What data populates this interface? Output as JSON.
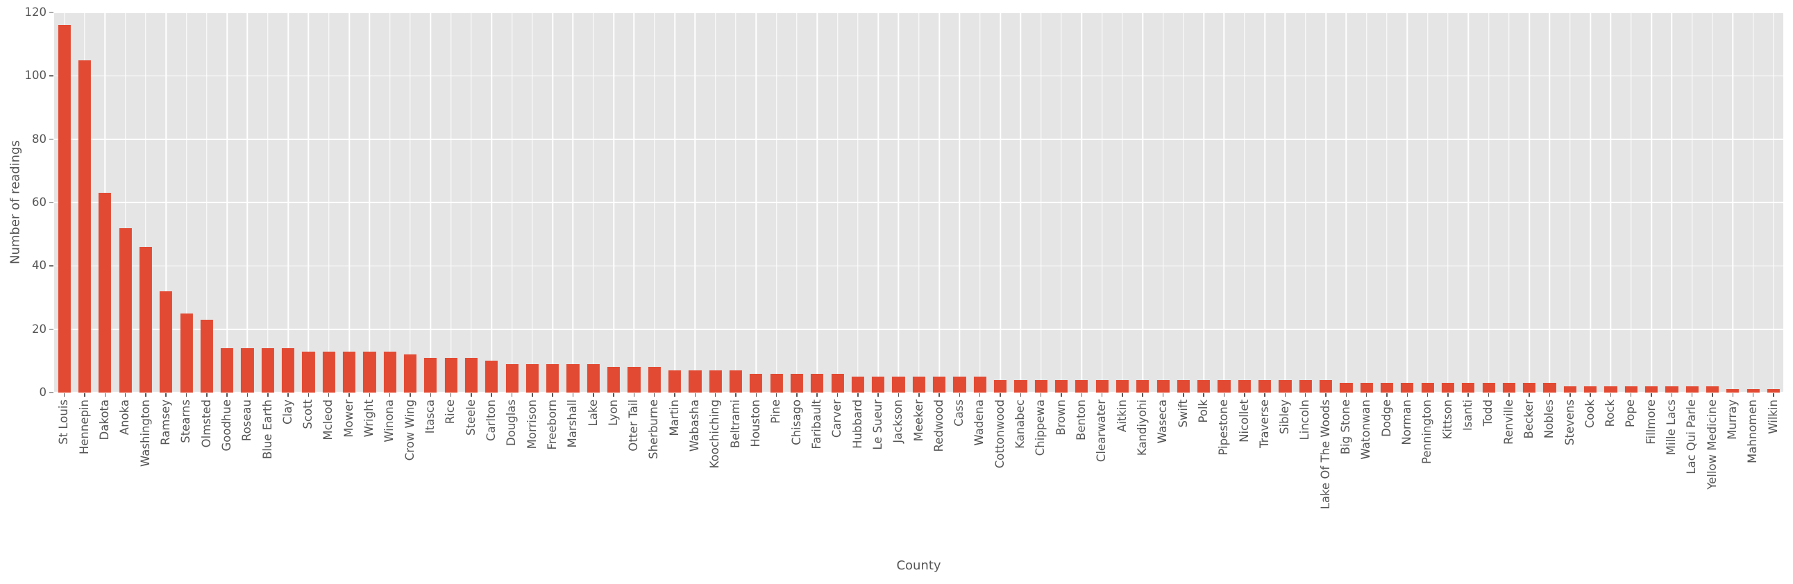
{
  "figure": {
    "background": "#ffffff",
    "plot_background": "#e5e5e5",
    "grid_color": "#ffffff",
    "bar_color": "#e24a33",
    "text_color": "#555555"
  },
  "chart_data": {
    "type": "bar",
    "title": "",
    "xlabel": "County",
    "ylabel": "Number of readings",
    "ylim": [
      0,
      120
    ],
    "yticks": [
      0,
      20,
      40,
      60,
      80,
      100,
      120
    ],
    "grid": true,
    "legend": false,
    "categories": [
      "St Louis",
      "Hennepin",
      "Dakota",
      "Anoka",
      "Washington",
      "Ramsey",
      "Stearns",
      "Olmsted",
      "Goodhue",
      "Roseau",
      "Blue Earth",
      "Clay",
      "Scott",
      "Mcleod",
      "Mower",
      "Wright",
      "Winona",
      "Crow Wing",
      "Itasca",
      "Rice",
      "Steele",
      "Carlton",
      "Douglas",
      "Morrison",
      "Freeborn",
      "Marshall",
      "Lake",
      "Lyon",
      "Otter Tail",
      "Sherburne",
      "Martin",
      "Wabasha",
      "Koochiching",
      "Beltrami",
      "Houston",
      "Pine",
      "Chisago",
      "Faribault",
      "Carver",
      "Hubbard",
      "Le Sueur",
      "Jackson",
      "Meeker",
      "Redwood",
      "Cass",
      "Wadena",
      "Cottonwood",
      "Kanabec",
      "Chippewa",
      "Brown",
      "Benton",
      "Clearwater",
      "Aitkin",
      "Kandiyohi",
      "Waseca",
      "Swift",
      "Polk",
      "Pipestone",
      "Nicollet",
      "Traverse",
      "Sibley",
      "Lincoln",
      "Lake Of The Woods",
      "Big Stone",
      "Watonwan",
      "Dodge",
      "Norman",
      "Pennington",
      "Kittson",
      "Isanti",
      "Todd",
      "Renville",
      "Becker",
      "Nobles",
      "Stevens",
      "Cook",
      "Rock",
      "Pope",
      "Fillmore",
      "Mille Lacs",
      "Lac Qui Parle",
      "Yellow Medicine",
      "Murray",
      "Mahnomen",
      "Wilkin"
    ],
    "values": [
      116,
      105,
      63,
      52,
      46,
      32,
      25,
      23,
      14,
      14,
      14,
      14,
      13,
      13,
      13,
      13,
      13,
      12,
      11,
      11,
      11,
      10,
      9,
      9,
      9,
      9,
      9,
      8,
      8,
      8,
      7,
      7,
      7,
      7,
      6,
      6,
      6,
      6,
      6,
      5,
      5,
      5,
      5,
      5,
      5,
      5,
      4,
      4,
      4,
      4,
      4,
      4,
      4,
      4,
      4,
      4,
      4,
      4,
      4,
      4,
      4,
      4,
      4,
      3,
      3,
      3,
      3,
      3,
      3,
      3,
      3,
      3,
      3,
      3,
      2,
      2,
      2,
      2,
      2,
      2,
      2,
      2,
      1,
      1,
      1
    ]
  }
}
